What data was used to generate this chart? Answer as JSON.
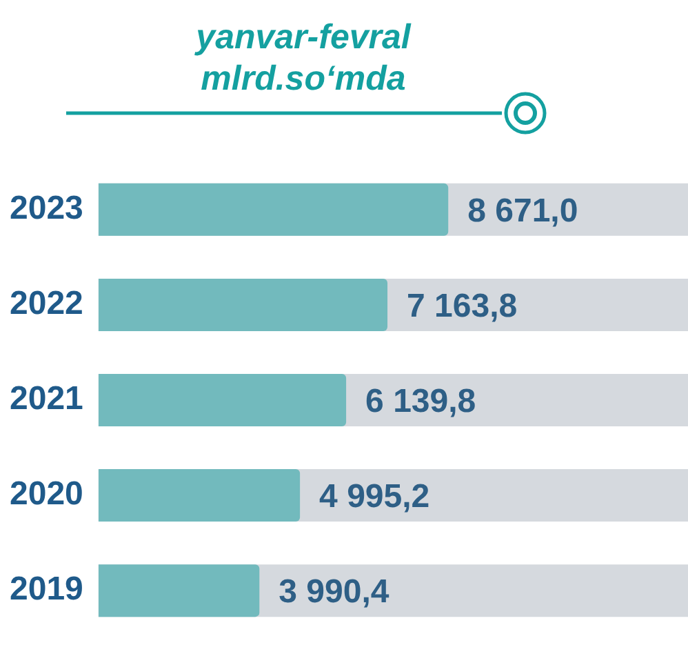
{
  "chart_data": {
    "type": "bar",
    "orientation": "horizontal",
    "title": "yanvar-fevral\nmlrd.so‘mda",
    "categories": [
      "2023",
      "2022",
      "2021",
      "2020",
      "2019"
    ],
    "values": [
      8671.0,
      7163.8,
      6139.8,
      4995.2,
      3990.4
    ],
    "value_labels": [
      "8 671,0",
      "7 163,8",
      "6 139,8",
      "4 995,2",
      "3 990,4"
    ],
    "color": "#72babd"
  }
}
